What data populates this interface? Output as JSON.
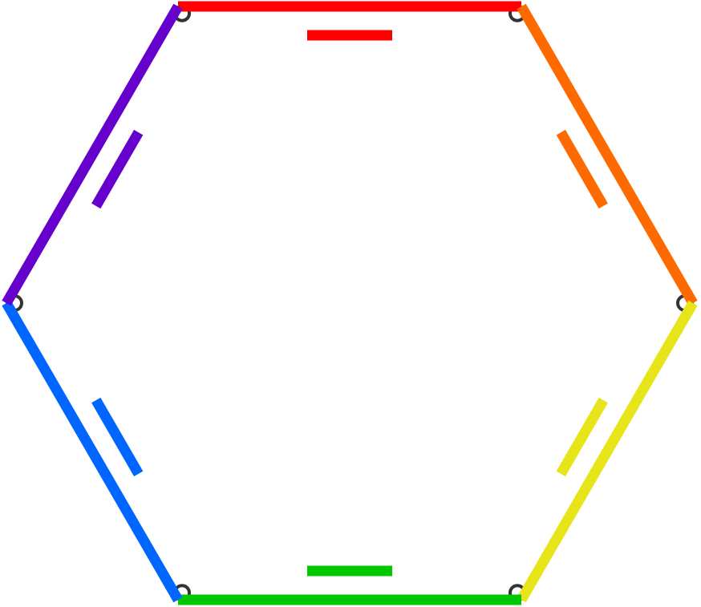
{
  "diagram": {
    "kind": "hexagon-with-parallel-side-markers",
    "sides": [
      {
        "id": "top",
        "color": "#ff0000"
      },
      {
        "id": "upper-right",
        "color": "#ff6a00"
      },
      {
        "id": "lower-right",
        "color": "#e8e41a"
      },
      {
        "id": "bottom",
        "color": "#00c800"
      },
      {
        "id": "lower-left",
        "color": "#0066ff"
      },
      {
        "id": "upper-left",
        "color": "#6600cc"
      }
    ],
    "vertex_marker_color": "#333333"
  }
}
